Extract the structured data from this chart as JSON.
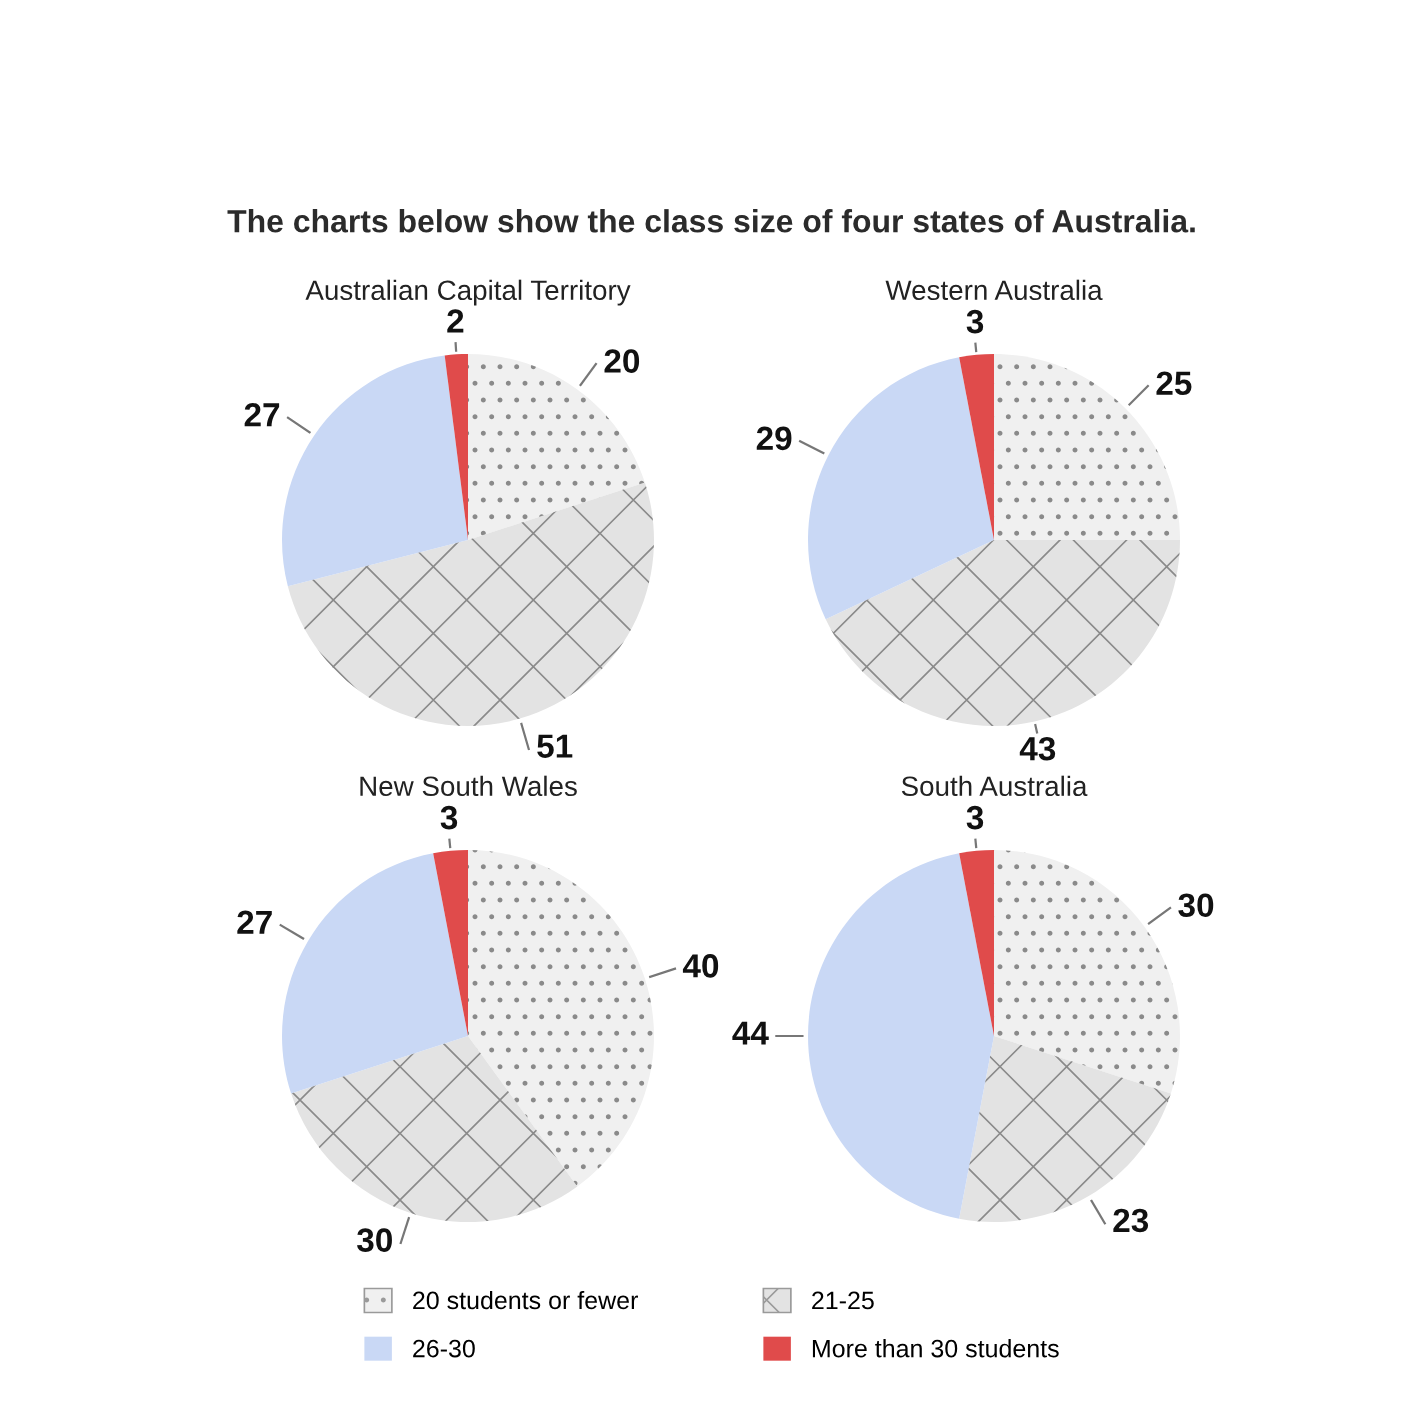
{
  "chart_data": [
    {
      "type": "pie",
      "title": "Australian Capital Territory",
      "categories": [
        "20 students or fewer",
        "21-25",
        "26-30",
        "More than 30 students"
      ],
      "values": [
        20,
        51,
        27,
        2
      ],
      "colors": [
        "#f0f0f0",
        "#e3e3e3",
        "#c9d8f5",
        "#e04b4b"
      ],
      "data_labels": true,
      "legend": "bottom",
      "annotations": [
        "The charts below show the class size of four states of Australia."
      ]
    },
    {
      "type": "pie",
      "title": "Western Australia",
      "categories": [
        null,
        null,
        null,
        null
      ],
      "values": [
        25,
        43,
        29,
        3
      ],
      "colors": [
        "#f0f0f0",
        "#e3e3e3",
        "#c9d8f5",
        "#e04b4b"
      ],
      "data_labels": true
    },
    {
      "type": "pie",
      "title": "New South Wales",
      "categories": [
        null,
        null,
        null,
        null
      ],
      "values": [
        40,
        30,
        27,
        3
      ],
      "colors": [
        "#f0f0f0",
        "#e3e3e3",
        "#c9d8f5",
        "#e04b4b"
      ],
      "data_labels": true
    },
    {
      "type": "pie",
      "title": "South Australia",
      "categories": [
        null,
        null,
        null,
        null
      ],
      "values": [
        30,
        23,
        44,
        3
      ],
      "colors": [
        "#f0f0f0",
        "#e3e3e3",
        "#c9d8f5",
        "#e04b4b"
      ],
      "data_labels": true
    }
  ]
}
